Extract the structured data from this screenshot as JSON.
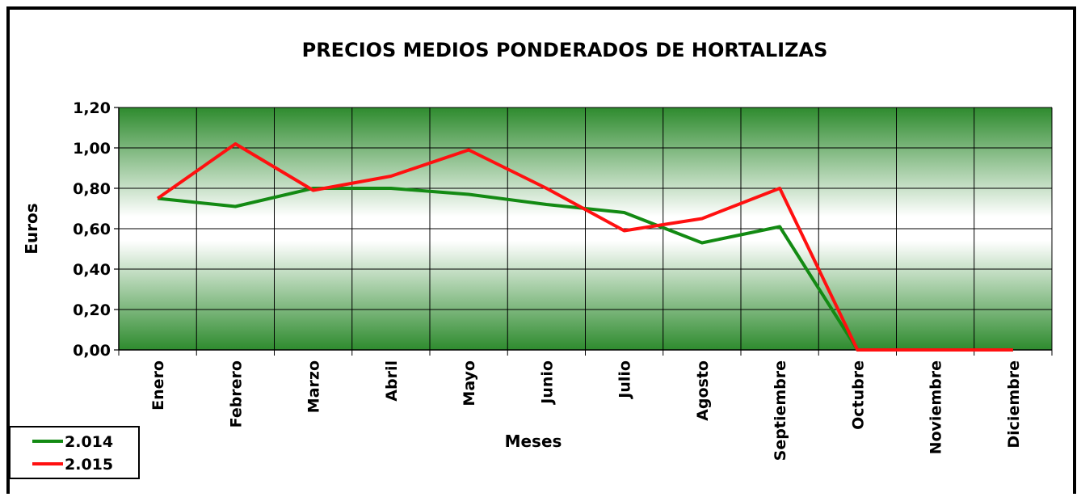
{
  "chart_data": {
    "type": "line",
    "title": "PRECIOS MEDIOS PONDERADOS DE HORTALIZAS",
    "x_label": "Meses",
    "y_label": "Euros",
    "categories": [
      "Enero",
      "Febrero",
      "Marzo",
      "Abril",
      "Mayo",
      "Junio",
      "Julio",
      "Agosto",
      "Septiembre",
      "Octubre",
      "Noviembre",
      "Diciembre"
    ],
    "series": [
      {
        "name": "2.014",
        "color": "#138a13",
        "values": [
          0.75,
          0.71,
          0.8,
          0.8,
          0.77,
          0.72,
          0.68,
          0.53,
          0.61,
          0,
          0,
          0
        ]
      },
      {
        "name": "2.015",
        "color": "#ff1010",
        "values": [
          0.75,
          1.02,
          0.79,
          0.86,
          0.99,
          0.8,
          0.59,
          0.65,
          0.8,
          0,
          0,
          0
        ]
      }
    ],
    "ylim": [
      0,
      1.2
    ],
    "yticks": [
      {
        "value": 0,
        "label": "0,00"
      },
      {
        "value": 0.2,
        "label": "0,20"
      },
      {
        "value": 0.4,
        "label": "0,40"
      },
      {
        "value": 0.6,
        "label": "0,60"
      },
      {
        "value": 0.8,
        "label": "0,80"
      },
      {
        "value": 1.0,
        "label": "1,00"
      },
      {
        "value": 1.2,
        "label": "1,20"
      }
    ],
    "grid": true,
    "legend": "bottom-left"
  }
}
